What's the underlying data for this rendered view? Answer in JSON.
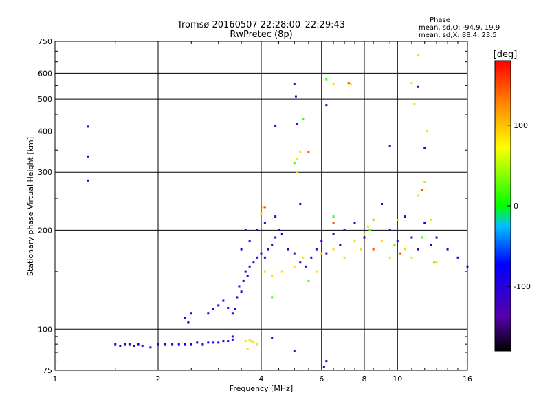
{
  "chart_data": {
    "type": "scatter",
    "title": "Tromsø 20160507 22:28:00–22:29:43",
    "subtitle": "RwPretec (8p)",
    "xlabel": "Frequency [MHz]",
    "ylabel": "Stationary phase Virtual Height [km]",
    "x_scale": "log",
    "y_scale": "log",
    "xlim": [
      1,
      16
    ],
    "ylim": [
      75,
      750
    ],
    "x_ticks": [
      1,
      2,
      4,
      6,
      8,
      10,
      16
    ],
    "x_tick_labels": [
      "1",
      "2",
      "4",
      "6",
      "8",
      "10",
      "16"
    ],
    "y_ticks": [
      75,
      100,
      200,
      300,
      400,
      500,
      600,
      750
    ],
    "y_tick_labels": [
      "75",
      "100",
      "200",
      "300",
      "400",
      "500",
      "600",
      "750"
    ],
    "grid": true,
    "stats": {
      "title": "Phase",
      "line_o": "mean, sd,O: -94.9, 19.9",
      "line_x": "mean, sd,X:  88.4, 23.5"
    },
    "colorbar": {
      "label": "[deg]",
      "range": [
        -180,
        180
      ],
      "tick_values": [
        100,
        0,
        -100
      ],
      "tick_labels": [
        "100",
        "0",
        "-100"
      ]
    },
    "series": [
      {
        "mode": "O",
        "color_value": -100,
        "points": [
          [
            1.25,
            413
          ],
          [
            1.25,
            335
          ],
          [
            1.25,
            283
          ],
          [
            1.5,
            90
          ],
          [
            1.55,
            89
          ],
          [
            1.6,
            90
          ],
          [
            1.65,
            90
          ],
          [
            1.7,
            89
          ],
          [
            1.75,
            90
          ],
          [
            1.8,
            89
          ],
          [
            1.9,
            88
          ],
          [
            2.0,
            90
          ],
          [
            2.1,
            90
          ],
          [
            2.2,
            90
          ],
          [
            2.3,
            90
          ],
          [
            2.4,
            90
          ],
          [
            2.5,
            90
          ],
          [
            2.6,
            91
          ],
          [
            2.7,
            90
          ],
          [
            2.8,
            91
          ],
          [
            2.9,
            91
          ],
          [
            3.0,
            91
          ],
          [
            3.1,
            92
          ],
          [
            3.2,
            92
          ],
          [
            3.3,
            93
          ],
          [
            2.4,
            108
          ],
          [
            2.45,
            105
          ],
          [
            2.5,
            112
          ],
          [
            2.8,
            112
          ],
          [
            2.9,
            115
          ],
          [
            3.0,
            118
          ],
          [
            3.1,
            122
          ],
          [
            3.2,
            116
          ],
          [
            3.3,
            112
          ],
          [
            3.35,
            115
          ],
          [
            3.4,
            125
          ],
          [
            3.45,
            135
          ],
          [
            3.5,
            130
          ],
          [
            3.55,
            140
          ],
          [
            3.6,
            150
          ],
          [
            3.65,
            145
          ],
          [
            3.7,
            155
          ],
          [
            3.8,
            160
          ],
          [
            3.9,
            165
          ],
          [
            4.0,
            170
          ],
          [
            4.1,
            165
          ],
          [
            4.2,
            175
          ],
          [
            4.3,
            180
          ],
          [
            4.4,
            190
          ],
          [
            4.5,
            200
          ],
          [
            4.6,
            195
          ],
          [
            4.8,
            175
          ],
          [
            5.0,
            170
          ],
          [
            5.2,
            160
          ],
          [
            5.4,
            155
          ],
          [
            5.6,
            165
          ],
          [
            5.8,
            175
          ],
          [
            6.0,
            185
          ],
          [
            6.2,
            170
          ],
          [
            6.5,
            195
          ],
          [
            6.8,
            180
          ],
          [
            7.0,
            200
          ],
          [
            7.5,
            210
          ],
          [
            8.0,
            190
          ],
          [
            8.5,
            215
          ],
          [
            9.0,
            240
          ],
          [
            9.5,
            200
          ],
          [
            10.0,
            185
          ],
          [
            10.5,
            220
          ],
          [
            11.0,
            190
          ],
          [
            11.5,
            175
          ],
          [
            12.0,
            210
          ],
          [
            12.5,
            180
          ],
          [
            13.0,
            190
          ],
          [
            14.0,
            175
          ],
          [
            15.0,
            165
          ],
          [
            16.0,
            155
          ],
          [
            3.3,
            95
          ],
          [
            4.3,
            94
          ],
          [
            5.0,
            86
          ],
          [
            6.2,
            80
          ],
          [
            6.1,
            77
          ],
          [
            3.5,
            175
          ],
          [
            3.6,
            200
          ],
          [
            3.7,
            185
          ],
          [
            3.9,
            200
          ],
          [
            4.1,
            210
          ],
          [
            4.4,
            220
          ],
          [
            5.2,
            240
          ],
          [
            5.0,
            555
          ],
          [
            5.05,
            510
          ],
          [
            5.1,
            420
          ],
          [
            4.4,
            415
          ],
          [
            6.2,
            480
          ],
          [
            11.5,
            545
          ],
          [
            12.0,
            355
          ],
          [
            9.5,
            360
          ]
        ]
      },
      {
        "mode": "X",
        "color_value": 88,
        "points": [
          [
            3.6,
            92
          ],
          [
            3.7,
            93
          ],
          [
            3.8,
            91
          ],
          [
            3.9,
            90
          ],
          [
            3.65,
            87
          ],
          [
            3.75,
            92
          ],
          [
            4.1,
            150
          ],
          [
            4.3,
            145
          ],
          [
            4.6,
            150
          ],
          [
            5.0,
            155
          ],
          [
            5.3,
            165
          ],
          [
            5.8,
            150
          ],
          [
            6.0,
            170
          ],
          [
            6.5,
            175
          ],
          [
            7.0,
            165
          ],
          [
            7.5,
            185
          ],
          [
            7.8,
            175
          ],
          [
            8.0,
            195
          ],
          [
            8.2,
            205
          ],
          [
            8.5,
            215
          ],
          [
            9.0,
            185
          ],
          [
            9.5,
            165
          ],
          [
            10.0,
            215
          ],
          [
            10.5,
            175
          ],
          [
            11.0,
            165
          ],
          [
            11.5,
            255
          ],
          [
            12.0,
            280
          ],
          [
            12.5,
            215
          ],
          [
            13.0,
            160
          ],
          [
            4.0,
            225
          ],
          [
            4.05,
            235
          ],
          [
            5.1,
            330
          ],
          [
            5.1,
            300
          ],
          [
            5.2,
            345
          ],
          [
            6.5,
            555
          ],
          [
            7.3,
            555
          ],
          [
            11.0,
            560
          ],
          [
            11.5,
            680
          ],
          [
            11.2,
            485
          ],
          [
            12.2,
            400
          ]
        ]
      },
      {
        "mode": "X",
        "color_value": 20,
        "points": [
          [
            6.2,
            575
          ],
          [
            5.3,
            435
          ],
          [
            5.0,
            320
          ],
          [
            6.5,
            220
          ],
          [
            8.3,
            200
          ],
          [
            9.8,
            180
          ],
          [
            11.8,
            190
          ],
          [
            12.8,
            160
          ],
          [
            5.5,
            140
          ],
          [
            4.3,
            125
          ]
        ]
      },
      {
        "mode": "O",
        "color_value": 150,
        "points": [
          [
            4.1,
            235
          ],
          [
            5.5,
            345
          ],
          [
            7.2,
            560
          ],
          [
            11.8,
            265
          ],
          [
            6.5,
            210
          ],
          [
            8.5,
            175
          ],
          [
            10.2,
            170
          ]
        ]
      }
    ]
  }
}
